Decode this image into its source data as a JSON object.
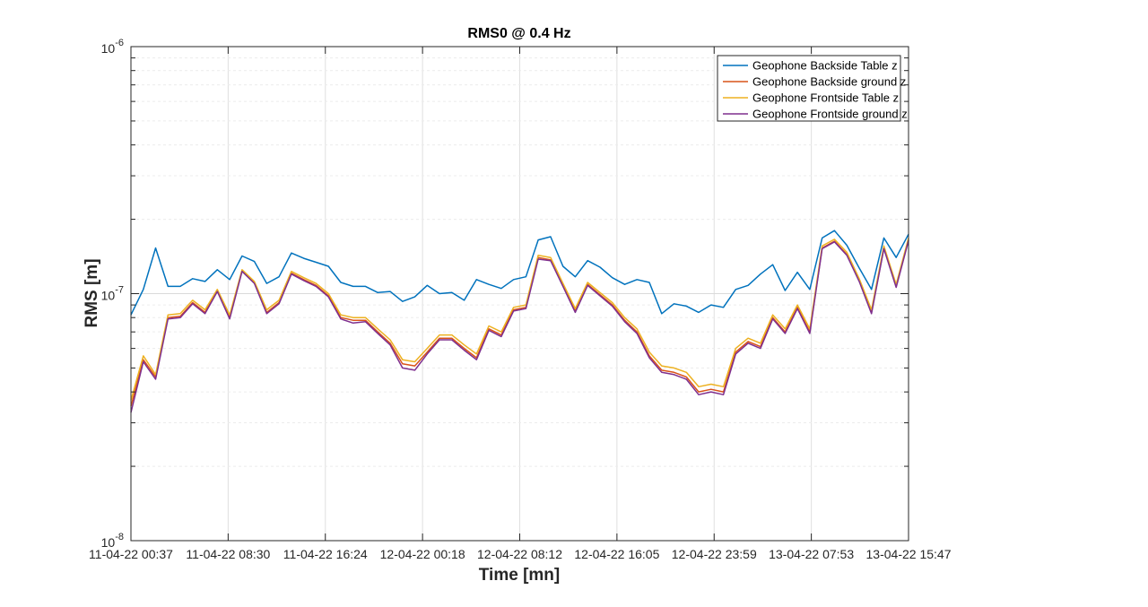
{
  "chart_data": {
    "type": "line",
    "title": "RMS0 @ 0.4 Hz",
    "xlabel": "Time [mn]",
    "ylabel": "RMS [m]",
    "yscale": "log",
    "ylim": [
      1e-08,
      1e-06
    ],
    "ytick_labels": [
      {
        "base": "10",
        "exp": "-8"
      },
      {
        "base": "10",
        "exp": "-7"
      },
      {
        "base": "10",
        "exp": "-6"
      }
    ],
    "xtick_labels": [
      "11-04-22 00:37",
      "11-04-22 08:30",
      "11-04-22 16:24",
      "12-04-22 00:18",
      "12-04-22 08:12",
      "12-04-22 16:05",
      "12-04-22 23:59",
      "13-04-22 07:53",
      "13-04-22 15:47"
    ],
    "grid": true,
    "legend_position": "top-right",
    "series": [
      {
        "name": "Geophone Backside Table z",
        "color": "#0072BD",
        "values": [
          8.2e-08,
          1.04e-07,
          1.53e-07,
          1.07e-07,
          1.07e-07,
          1.15e-07,
          1.12e-07,
          1.25e-07,
          1.14e-07,
          1.42e-07,
          1.35e-07,
          1.1e-07,
          1.17e-07,
          1.46e-07,
          1.39e-07,
          1.34e-07,
          1.29e-07,
          1.11e-07,
          1.07e-07,
          1.07e-07,
          1.01e-07,
          1.02e-07,
          9.3e-08,
          9.7e-08,
          1.08e-07,
          1e-07,
          1.01e-07,
          9.4e-08,
          1.14e-07,
          1.09e-07,
          1.05e-07,
          1.14e-07,
          1.17e-07,
          1.65e-07,
          1.7e-07,
          1.29e-07,
          1.17e-07,
          1.36e-07,
          1.28e-07,
          1.16e-07,
          1.09e-07,
          1.14e-07,
          1.11e-07,
          8.3e-08,
          9.1e-08,
          8.9e-08,
          8.4e-08,
          9e-08,
          8.8e-08,
          1.04e-07,
          1.08e-07,
          1.2e-07,
          1.31e-07,
          1.03e-07,
          1.22e-07,
          1.04e-07,
          1.68e-07,
          1.8e-07,
          1.57e-07,
          1.27e-07,
          1.04e-07,
          1.68e-07,
          1.4e-07,
          1.74e-07
        ]
      },
      {
        "name": "Geophone Backside ground z",
        "color": "#D95319",
        "values": [
          3.5e-08,
          5.4e-08,
          4.6e-08,
          8e-08,
          8.1e-08,
          9.2e-08,
          8.4e-08,
          1.03e-07,
          8e-08,
          1.24e-07,
          1.11e-07,
          8.4e-08,
          9.2e-08,
          1.21e-07,
          1.14e-07,
          1.08e-07,
          9.8e-08,
          8e-08,
          7.8e-08,
          7.8e-08,
          7e-08,
          6.3e-08,
          5.2e-08,
          5.1e-08,
          5.8e-08,
          6.6e-08,
          6.6e-08,
          6e-08,
          5.5e-08,
          7.2e-08,
          6.8e-08,
          8.6e-08,
          8.8e-08,
          1.4e-07,
          1.37e-07,
          1.08e-07,
          8.5e-08,
          1.09e-07,
          9.9e-08,
          9e-08,
          7.8e-08,
          7e-08,
          5.6e-08,
          4.9e-08,
          4.8e-08,
          4.6e-08,
          4e-08,
          4.1e-08,
          4e-08,
          5.8e-08,
          6.4e-08,
          6.1e-08,
          8e-08,
          7e-08,
          8.8e-08,
          7e-08,
          1.53e-07,
          1.63e-07,
          1.44e-07,
          1.13e-07,
          8.4e-08,
          1.53e-07,
          1.07e-07,
          1.65e-07
        ]
      },
      {
        "name": "Geophone Frontside Table z",
        "color": "#EDB120",
        "values": [
          3.7e-08,
          5.6e-08,
          4.7e-08,
          8.2e-08,
          8.3e-08,
          9.4e-08,
          8.6e-08,
          1.04e-07,
          8.2e-08,
          1.25e-07,
          1.12e-07,
          8.6e-08,
          9.4e-08,
          1.23e-07,
          1.16e-07,
          1.1e-07,
          1e-07,
          8.2e-08,
          8e-08,
          8e-08,
          7.2e-08,
          6.5e-08,
          5.4e-08,
          5.3e-08,
          6e-08,
          6.8e-08,
          6.8e-08,
          6.2e-08,
          5.7e-08,
          7.4e-08,
          7e-08,
          8.8e-08,
          9e-08,
          1.43e-07,
          1.4e-07,
          1.1e-07,
          8.7e-08,
          1.11e-07,
          1.01e-07,
          9.2e-08,
          8e-08,
          7.2e-08,
          5.8e-08,
          5.1e-08,
          5e-08,
          4.8e-08,
          4.2e-08,
          4.3e-08,
          4.2e-08,
          6e-08,
          6.6e-08,
          6.3e-08,
          8.2e-08,
          7.2e-08,
          9e-08,
          7.2e-08,
          1.56e-07,
          1.66e-07,
          1.47e-07,
          1.15e-07,
          8.6e-08,
          1.56e-07,
          1.09e-07,
          1.68e-07
        ]
      },
      {
        "name": "Geophone Frontside ground z",
        "color": "#7E2F8E",
        "values": [
          3.3e-08,
          5.3e-08,
          4.5e-08,
          7.9e-08,
          8e-08,
          9.1e-08,
          8.3e-08,
          1.02e-07,
          7.9e-08,
          1.23e-07,
          1.1e-07,
          8.3e-08,
          9.1e-08,
          1.2e-07,
          1.13e-07,
          1.07e-07,
          9.7e-08,
          7.9e-08,
          7.6e-08,
          7.7e-08,
          6.9e-08,
          6.2e-08,
          5e-08,
          4.9e-08,
          5.7e-08,
          6.5e-08,
          6.5e-08,
          5.9e-08,
          5.4e-08,
          7.1e-08,
          6.7e-08,
          8.5e-08,
          8.7e-08,
          1.38e-07,
          1.36e-07,
          1.07e-07,
          8.4e-08,
          1.08e-07,
          9.8e-08,
          8.9e-08,
          7.7e-08,
          6.9e-08,
          5.5e-08,
          4.8e-08,
          4.7e-08,
          4.5e-08,
          3.9e-08,
          4e-08,
          3.9e-08,
          5.7e-08,
          6.3e-08,
          6e-08,
          7.9e-08,
          6.9e-08,
          8.7e-08,
          6.9e-08,
          1.52e-07,
          1.62e-07,
          1.43e-07,
          1.12e-07,
          8.3e-08,
          1.52e-07,
          1.06e-07,
          1.64e-07
        ]
      }
    ]
  }
}
